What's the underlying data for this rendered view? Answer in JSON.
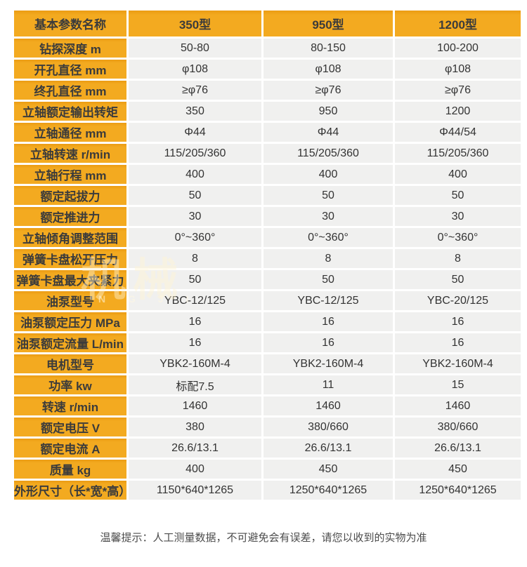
{
  "table": {
    "header": [
      "基本参数名称",
      "350型",
      "950型",
      "1200型"
    ],
    "rows": [
      [
        "钻探深度 m",
        "50-80",
        "80-150",
        "100-200"
      ],
      [
        "开孔直径 mm",
        "φ108",
        "φ108",
        "φ108"
      ],
      [
        "终孔直径 mm",
        "≥φ76",
        "≥φ76",
        "≥φ76"
      ],
      [
        "立轴额定输出转矩",
        "350",
        "950",
        "1200"
      ],
      [
        "立轴通径  mm",
        "Φ44",
        "Φ44",
        "Φ44/54"
      ],
      [
        "立轴转速  r/min",
        "115/205/360",
        "115/205/360",
        "115/205/360"
      ],
      [
        "立轴行程  mm",
        "400",
        "400",
        "400"
      ],
      [
        "额定起拔力",
        "50",
        "50",
        "50"
      ],
      [
        "额定推进力",
        "30",
        "30",
        "30"
      ],
      [
        "立轴倾角调整范围",
        "0°~360°",
        "0°~360°",
        "0°~360°"
      ],
      [
        "弹簧卡盘松开压力",
        "8",
        "8",
        "8"
      ],
      [
        "弹簧卡盘最大夹紧力",
        "50",
        "50",
        "50"
      ],
      [
        "油泵型号",
        "YBC-12/125",
        "YBC-12/125",
        "YBC-20/125"
      ],
      [
        "油泵额定压力 MPa",
        "16",
        "16",
        "16"
      ],
      [
        "油泵额定流量 L/min",
        "16",
        "16",
        "16"
      ],
      [
        "电机型号",
        "YBK2-160M-4",
        "YBK2-160M-4",
        "YBK2-160M-4"
      ],
      [
        "功率 kw",
        "标配7.5",
        "11",
        "15"
      ],
      [
        "转速 r/min",
        "1460",
        "1460",
        "1460"
      ],
      [
        "额定电压 V",
        "380",
        "380/660",
        "380/660"
      ],
      [
        "额定电流 A",
        "26.6/13.1",
        "26.6/13.1",
        "26.6/13.1"
      ],
      [
        "质量 kg",
        "400",
        "450",
        "450"
      ],
      [
        "外形尺寸（长*宽*高）",
        "1150*640*1265",
        "1250*640*1265",
        "1250*640*1265"
      ]
    ]
  },
  "watermark": {
    "chars": "机械",
    "letters": "N G J I"
  },
  "footer": {
    "note": "温馨提示：人工测量数据，不可避免会有误差，请您以收到的实物为准"
  },
  "colors": {
    "accent_gold": "#f3aa20",
    "cell_gray": "#f0f0ef",
    "header_text": "#3b3b3b",
    "value_text": "#333333",
    "note_text": "#4c4c4c"
  }
}
